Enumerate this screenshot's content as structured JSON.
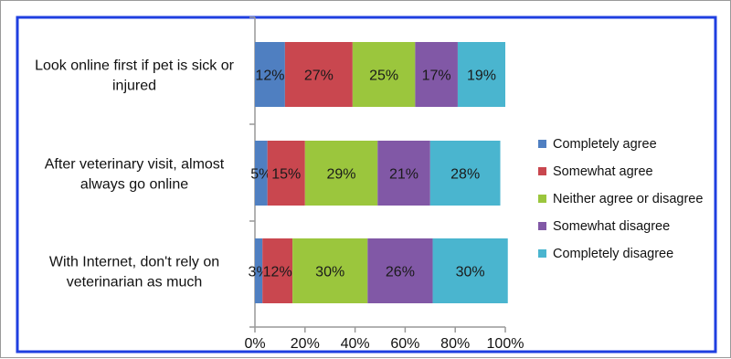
{
  "colors": {
    "frame_border": "#1f3fe0",
    "axis": "#999999",
    "series": [
      "#4f7fc1",
      "#c9474f",
      "#9bc63d",
      "#8158a6",
      "#4ab5cf"
    ]
  },
  "chart_data": {
    "type": "bar",
    "orientation": "horizontal",
    "stacked": true,
    "percent": true,
    "title": "",
    "xlabel": "",
    "ylabel": "",
    "xlim": [
      0,
      100
    ],
    "x_ticks": [
      "0%",
      "20%",
      "40%",
      "60%",
      "80%",
      "100%"
    ],
    "grid": false,
    "legend_position": "right",
    "categories": [
      "Look online first if pet is sick or injured",
      "After veterinary visit, almost always go online",
      "With Internet, don't rely on veterinarian as much"
    ],
    "category_label_lines": [
      [
        "Look online first if pet is sick or",
        "injured"
      ],
      [
        "After veterinary visit, almost",
        "always go online"
      ],
      [
        "With Internet, don't rely on",
        "veterinarian as much"
      ]
    ],
    "series": [
      {
        "name": "Completely agree",
        "values": [
          12,
          5,
          3
        ]
      },
      {
        "name": "Somewhat agree",
        "values": [
          27,
          15,
          12
        ]
      },
      {
        "name": "Neither agree or disagree",
        "values": [
          25,
          29,
          30
        ]
      },
      {
        "name": "Somewhat disagree",
        "values": [
          17,
          21,
          26
        ]
      },
      {
        "name": "Completely disagree",
        "values": [
          19,
          28,
          30
        ]
      }
    ],
    "data_labels": [
      [
        "12%",
        "27%",
        "25%",
        "17%",
        "19%"
      ],
      [
        "5%",
        "15%",
        "29%",
        "21%",
        "28%"
      ],
      [
        "3%",
        "12%",
        "30%",
        "26%",
        "30%"
      ]
    ]
  }
}
